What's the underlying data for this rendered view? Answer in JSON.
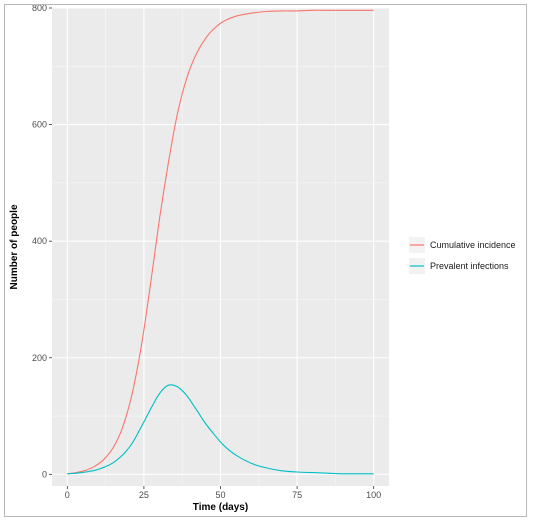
{
  "chart_data": {
    "type": "line",
    "xlabel": "Time (days)",
    "ylabel": "Number of people",
    "xlim": [
      -5,
      105
    ],
    "ylim": [
      -20,
      800
    ],
    "xticks": [
      0,
      25,
      50,
      75,
      100
    ],
    "yticks": [
      0,
      200,
      400,
      600,
      800
    ],
    "xtick_labels": [
      "0",
      "25",
      "50",
      "75",
      "100"
    ],
    "ytick_labels": [
      "0",
      "200",
      "400",
      "600",
      "800"
    ],
    "grid": true,
    "legend_position": "right",
    "panel_background": "#ebebeb",
    "x": [
      0,
      3,
      6,
      9,
      12,
      15,
      18,
      21,
      24,
      27,
      30,
      33,
      36,
      39,
      42,
      45,
      48,
      51,
      55,
      60,
      65,
      70,
      75,
      80,
      85,
      90,
      95,
      100
    ],
    "series": [
      {
        "name": "Cumulative incidence",
        "color": "#f8766d",
        "values": [
          1,
          3,
          7,
          14,
          26,
          46,
          80,
          135,
          215,
          320,
          435,
          535,
          620,
          680,
          720,
          747,
          765,
          777,
          786,
          791,
          794,
          795,
          795,
          796,
          796,
          796,
          796,
          796
        ]
      },
      {
        "name": "Prevalent infections",
        "color": "#00bfc4",
        "values": [
          1,
          2,
          4,
          7,
          12,
          20,
          33,
          52,
          80,
          110,
          138,
          153,
          150,
          135,
          112,
          88,
          68,
          50,
          33,
          19,
          11,
          6,
          4,
          3,
          2,
          1,
          1,
          1
        ]
      }
    ]
  }
}
